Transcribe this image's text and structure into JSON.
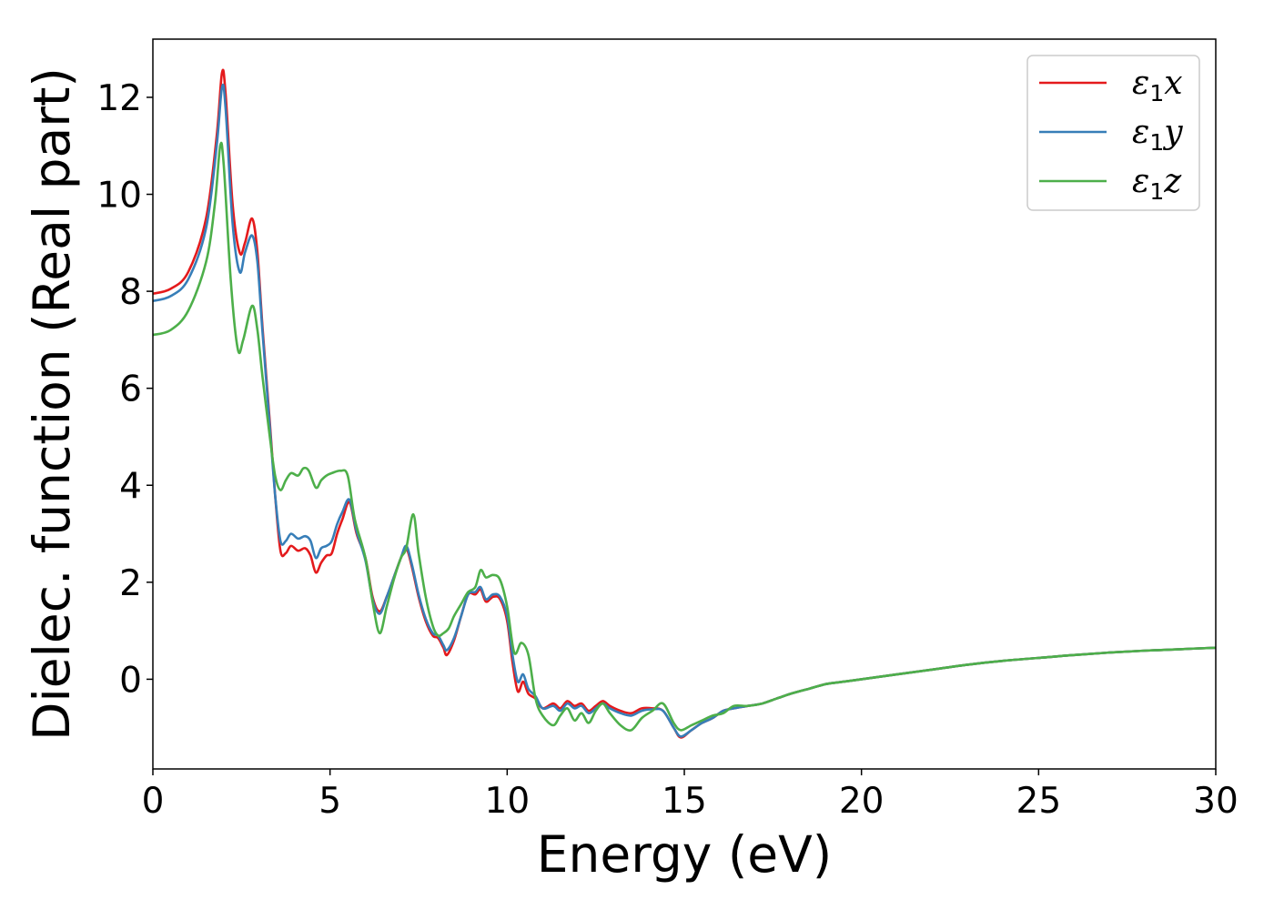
{
  "chart_data": {
    "type": "line",
    "xlabel": "Energy (eV)",
    "ylabel": "Dielec. function (Real part)",
    "xlim": [
      0,
      30
    ],
    "ylim": [
      -1.85,
      13.2
    ],
    "xticks": [
      "0",
      "5",
      "10",
      "15",
      "20",
      "25",
      "30"
    ],
    "yticks": [
      "0",
      "2",
      "4",
      "6",
      "8",
      "10",
      "12"
    ],
    "legend_position": "top-right",
    "grid": false,
    "series": [
      {
        "name": "ε₁x",
        "legend_base": "ε",
        "legend_sub": "1",
        "legend_tail": "x",
        "color": "#e41a1c",
        "points": [
          [
            0,
            7.95
          ],
          [
            0.5,
            8.05
          ],
          [
            1.0,
            8.4
          ],
          [
            1.5,
            9.5
          ],
          [
            1.8,
            11.2
          ],
          [
            1.95,
            12.5
          ],
          [
            2.05,
            12.1
          ],
          [
            2.25,
            9.8
          ],
          [
            2.45,
            8.8
          ],
          [
            2.6,
            9.0
          ],
          [
            2.8,
            9.5
          ],
          [
            2.95,
            8.8
          ],
          [
            3.1,
            7.2
          ],
          [
            3.3,
            5.3
          ],
          [
            3.45,
            3.8
          ],
          [
            3.6,
            2.65
          ],
          [
            3.75,
            2.6
          ],
          [
            3.9,
            2.75
          ],
          [
            4.1,
            2.65
          ],
          [
            4.3,
            2.7
          ],
          [
            4.45,
            2.55
          ],
          [
            4.6,
            2.2
          ],
          [
            4.75,
            2.4
          ],
          [
            4.9,
            2.55
          ],
          [
            5.05,
            2.6
          ],
          [
            5.2,
            3.0
          ],
          [
            5.35,
            3.3
          ],
          [
            5.55,
            3.65
          ],
          [
            5.75,
            3.0
          ],
          [
            6.0,
            2.5
          ],
          [
            6.2,
            1.7
          ],
          [
            6.4,
            1.4
          ],
          [
            6.6,
            1.7
          ],
          [
            6.8,
            2.1
          ],
          [
            7.0,
            2.5
          ],
          [
            7.15,
            2.7
          ],
          [
            7.3,
            2.35
          ],
          [
            7.5,
            1.7
          ],
          [
            7.7,
            1.2
          ],
          [
            7.9,
            0.9
          ],
          [
            8.05,
            0.85
          ],
          [
            8.2,
            0.65
          ],
          [
            8.3,
            0.5
          ],
          [
            8.5,
            0.8
          ],
          [
            8.7,
            1.3
          ],
          [
            8.9,
            1.75
          ],
          [
            9.1,
            1.75
          ],
          [
            9.25,
            1.85
          ],
          [
            9.4,
            1.6
          ],
          [
            9.6,
            1.7
          ],
          [
            9.8,
            1.65
          ],
          [
            10.0,
            1.2
          ],
          [
            10.15,
            0.35
          ],
          [
            10.3,
            -0.25
          ],
          [
            10.45,
            -0.05
          ],
          [
            10.6,
            -0.3
          ],
          [
            10.8,
            -0.4
          ],
          [
            11.0,
            -0.6
          ],
          [
            11.3,
            -0.5
          ],
          [
            11.5,
            -0.6
          ],
          [
            11.7,
            -0.45
          ],
          [
            11.9,
            -0.55
          ],
          [
            12.1,
            -0.5
          ],
          [
            12.3,
            -0.65
          ],
          [
            12.5,
            -0.55
          ],
          [
            12.7,
            -0.45
          ],
          [
            12.9,
            -0.55
          ],
          [
            13.2,
            -0.65
          ],
          [
            13.5,
            -0.7
          ],
          [
            13.8,
            -0.6
          ],
          [
            14.1,
            -0.6
          ],
          [
            14.4,
            -0.65
          ],
          [
            14.7,
            -1.0
          ],
          [
            14.9,
            -1.2
          ],
          [
            15.2,
            -1.05
          ],
          [
            15.5,
            -0.9
          ],
          [
            15.8,
            -0.8
          ],
          [
            16.1,
            -0.65
          ],
          [
            16.4,
            -0.6
          ],
          [
            16.8,
            -0.55
          ],
          [
            17.2,
            -0.5
          ],
          [
            17.6,
            -0.4
          ],
          [
            18.0,
            -0.3
          ],
          [
            18.5,
            -0.2
          ],
          [
            19.0,
            -0.1
          ],
          [
            19.5,
            -0.05
          ],
          [
            20,
            0.0
          ],
          [
            21,
            0.1
          ],
          [
            22,
            0.2
          ],
          [
            23,
            0.3
          ],
          [
            24,
            0.38
          ],
          [
            25,
            0.44
          ],
          [
            26,
            0.5
          ],
          [
            27,
            0.55
          ],
          [
            28,
            0.59
          ],
          [
            29,
            0.62
          ],
          [
            30,
            0.65
          ]
        ]
      },
      {
        "name": "ε₁y",
        "legend_base": "ε",
        "legend_sub": "1",
        "legend_tail": "y",
        "color": "#377eb8",
        "points": [
          [
            0,
            7.8
          ],
          [
            0.5,
            7.9
          ],
          [
            1.0,
            8.25
          ],
          [
            1.5,
            9.3
          ],
          [
            1.8,
            11.0
          ],
          [
            1.95,
            12.2
          ],
          [
            2.05,
            11.8
          ],
          [
            2.25,
            9.4
          ],
          [
            2.45,
            8.4
          ],
          [
            2.6,
            8.8
          ],
          [
            2.8,
            9.15
          ],
          [
            2.95,
            8.6
          ],
          [
            3.1,
            7.1
          ],
          [
            3.3,
            5.2
          ],
          [
            3.45,
            3.8
          ],
          [
            3.6,
            2.85
          ],
          [
            3.75,
            2.85
          ],
          [
            3.9,
            3.0
          ],
          [
            4.1,
            2.9
          ],
          [
            4.3,
            2.95
          ],
          [
            4.45,
            2.85
          ],
          [
            4.6,
            2.5
          ],
          [
            4.75,
            2.7
          ],
          [
            4.9,
            2.75
          ],
          [
            5.05,
            2.85
          ],
          [
            5.2,
            3.2
          ],
          [
            5.35,
            3.45
          ],
          [
            5.55,
            3.7
          ],
          [
            5.75,
            3.05
          ],
          [
            6.0,
            2.45
          ],
          [
            6.2,
            1.65
          ],
          [
            6.4,
            1.35
          ],
          [
            6.6,
            1.7
          ],
          [
            6.8,
            2.1
          ],
          [
            7.0,
            2.5
          ],
          [
            7.15,
            2.75
          ],
          [
            7.3,
            2.4
          ],
          [
            7.5,
            1.75
          ],
          [
            7.7,
            1.25
          ],
          [
            7.9,
            0.95
          ],
          [
            8.05,
            0.9
          ],
          [
            8.2,
            0.7
          ],
          [
            8.3,
            0.6
          ],
          [
            8.5,
            0.85
          ],
          [
            8.7,
            1.3
          ],
          [
            8.9,
            1.75
          ],
          [
            9.1,
            1.8
          ],
          [
            9.25,
            1.9
          ],
          [
            9.4,
            1.65
          ],
          [
            9.6,
            1.75
          ],
          [
            9.8,
            1.7
          ],
          [
            10.0,
            1.3
          ],
          [
            10.15,
            0.5
          ],
          [
            10.3,
            -0.05
          ],
          [
            10.45,
            0.1
          ],
          [
            10.6,
            -0.2
          ],
          [
            10.8,
            -0.35
          ],
          [
            11.0,
            -0.6
          ],
          [
            11.3,
            -0.55
          ],
          [
            11.5,
            -0.65
          ],
          [
            11.7,
            -0.5
          ],
          [
            11.9,
            -0.6
          ],
          [
            12.1,
            -0.55
          ],
          [
            12.3,
            -0.7
          ],
          [
            12.5,
            -0.6
          ],
          [
            12.7,
            -0.5
          ],
          [
            12.9,
            -0.6
          ],
          [
            13.2,
            -0.7
          ],
          [
            13.5,
            -0.75
          ],
          [
            13.8,
            -0.65
          ],
          [
            14.1,
            -0.62
          ],
          [
            14.4,
            -0.65
          ],
          [
            14.7,
            -1.0
          ],
          [
            14.9,
            -1.18
          ],
          [
            15.2,
            -1.05
          ],
          [
            15.5,
            -0.9
          ],
          [
            15.8,
            -0.8
          ],
          [
            16.1,
            -0.65
          ],
          [
            16.4,
            -0.6
          ],
          [
            16.8,
            -0.55
          ],
          [
            17.2,
            -0.5
          ],
          [
            17.6,
            -0.4
          ],
          [
            18.0,
            -0.3
          ],
          [
            18.5,
            -0.2
          ],
          [
            19.0,
            -0.1
          ],
          [
            19.5,
            -0.05
          ],
          [
            20,
            0.0
          ],
          [
            21,
            0.1
          ],
          [
            22,
            0.2
          ],
          [
            23,
            0.3
          ],
          [
            24,
            0.38
          ],
          [
            25,
            0.44
          ],
          [
            26,
            0.5
          ],
          [
            27,
            0.55
          ],
          [
            28,
            0.59
          ],
          [
            29,
            0.62
          ],
          [
            30,
            0.65
          ]
        ]
      },
      {
        "name": "ε₁z",
        "legend_base": "ε",
        "legend_sub": "1",
        "legend_tail": "z",
        "color": "#4daf4a",
        "points": [
          [
            0,
            7.1
          ],
          [
            0.5,
            7.2
          ],
          [
            1.0,
            7.6
          ],
          [
            1.5,
            8.6
          ],
          [
            1.75,
            9.8
          ],
          [
            1.9,
            11.0
          ],
          [
            2.0,
            10.6
          ],
          [
            2.2,
            8.2
          ],
          [
            2.4,
            6.8
          ],
          [
            2.55,
            7.0
          ],
          [
            2.8,
            7.7
          ],
          [
            2.95,
            7.2
          ],
          [
            3.1,
            6.2
          ],
          [
            3.3,
            5.0
          ],
          [
            3.45,
            4.2
          ],
          [
            3.6,
            3.9
          ],
          [
            3.75,
            4.1
          ],
          [
            3.9,
            4.25
          ],
          [
            4.1,
            4.2
          ],
          [
            4.25,
            4.35
          ],
          [
            4.4,
            4.3
          ],
          [
            4.6,
            3.95
          ],
          [
            4.75,
            4.1
          ],
          [
            4.9,
            4.2
          ],
          [
            5.05,
            4.25
          ],
          [
            5.3,
            4.3
          ],
          [
            5.5,
            4.2
          ],
          [
            5.7,
            3.3
          ],
          [
            6.0,
            2.5
          ],
          [
            6.2,
            1.6
          ],
          [
            6.4,
            0.95
          ],
          [
            6.6,
            1.5
          ],
          [
            6.8,
            2.05
          ],
          [
            7.0,
            2.5
          ],
          [
            7.15,
            2.7
          ],
          [
            7.35,
            3.4
          ],
          [
            7.5,
            2.6
          ],
          [
            7.7,
            1.7
          ],
          [
            7.9,
            1.1
          ],
          [
            8.05,
            0.9
          ],
          [
            8.2,
            0.95
          ],
          [
            8.35,
            1.05
          ],
          [
            8.5,
            1.3
          ],
          [
            8.7,
            1.55
          ],
          [
            8.9,
            1.8
          ],
          [
            9.1,
            1.9
          ],
          [
            9.25,
            2.25
          ],
          [
            9.4,
            2.1
          ],
          [
            9.6,
            2.15
          ],
          [
            9.8,
            2.05
          ],
          [
            10.0,
            1.5
          ],
          [
            10.2,
            0.55
          ],
          [
            10.4,
            0.75
          ],
          [
            10.6,
            0.5
          ],
          [
            10.8,
            -0.4
          ],
          [
            11.0,
            -0.75
          ],
          [
            11.3,
            -0.95
          ],
          [
            11.5,
            -0.75
          ],
          [
            11.7,
            -0.6
          ],
          [
            11.9,
            -0.85
          ],
          [
            12.1,
            -0.7
          ],
          [
            12.3,
            -0.9
          ],
          [
            12.5,
            -0.65
          ],
          [
            12.7,
            -0.5
          ],
          [
            12.9,
            -0.7
          ],
          [
            13.2,
            -0.95
          ],
          [
            13.5,
            -1.05
          ],
          [
            13.8,
            -0.8
          ],
          [
            14.1,
            -0.65
          ],
          [
            14.4,
            -0.5
          ],
          [
            14.7,
            -0.9
          ],
          [
            14.9,
            -1.05
          ],
          [
            15.2,
            -0.95
          ],
          [
            15.5,
            -0.85
          ],
          [
            15.8,
            -0.75
          ],
          [
            16.1,
            -0.7
          ],
          [
            16.4,
            -0.55
          ],
          [
            16.8,
            -0.55
          ],
          [
            17.2,
            -0.5
          ],
          [
            17.6,
            -0.4
          ],
          [
            18.0,
            -0.3
          ],
          [
            18.5,
            -0.2
          ],
          [
            19.0,
            -0.1
          ],
          [
            19.5,
            -0.05
          ],
          [
            20,
            0.0
          ],
          [
            21,
            0.1
          ],
          [
            22,
            0.2
          ],
          [
            23,
            0.3
          ],
          [
            24,
            0.38
          ],
          [
            25,
            0.44
          ],
          [
            26,
            0.5
          ],
          [
            27,
            0.55
          ],
          [
            28,
            0.59
          ],
          [
            29,
            0.62
          ],
          [
            30,
            0.65
          ]
        ]
      }
    ]
  }
}
